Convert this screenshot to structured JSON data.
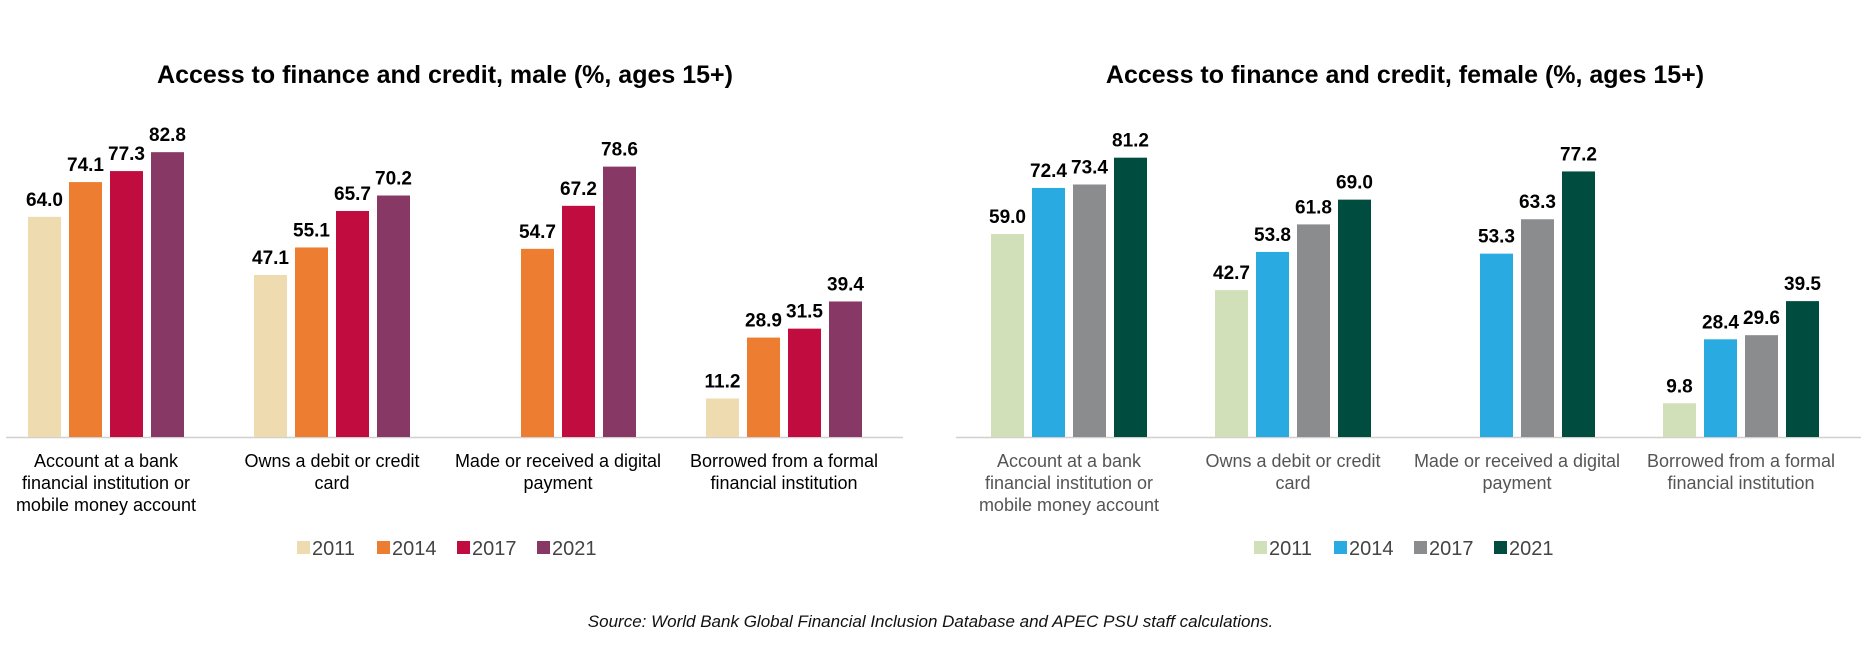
{
  "source_note": "Source: World Bank Global Financial Inclusion Database and APEC PSU staff calculations.",
  "chart_data": [
    {
      "type": "bar",
      "title": "Access to finance and credit, male (%, ages 15+)",
      "categories": [
        [
          "Account at a bank",
          "financial institution or",
          "mobile money account"
        ],
        [
          "Owns a debit or credit",
          "card"
        ],
        [
          "Made or received a digital",
          "payment"
        ],
        [
          "Borrowed from a formal",
          "financial institution"
        ]
      ],
      "series": [
        {
          "name": "2011",
          "color": "#EFDBB0",
          "values": [
            64.0,
            47.1,
            null,
            11.2
          ]
        },
        {
          "name": "2014",
          "color": "#ED7D31",
          "values": [
            74.1,
            55.1,
            54.7,
            28.9
          ]
        },
        {
          "name": "2017",
          "color": "#C00C3F",
          "values": [
            77.3,
            65.7,
            67.2,
            31.5
          ]
        },
        {
          "name": "2021",
          "color": "#873865",
          "values": [
            82.8,
            70.2,
            78.6,
            39.4
          ]
        }
      ],
      "ylim": [
        0,
        90
      ],
      "grid": false,
      "legend": "bottom",
      "xlabel": "",
      "ylabel": ""
    },
    {
      "type": "bar",
      "title": "Access to finance and credit, female (%, ages 15+)",
      "categories": [
        [
          "Account at a bank",
          "financial institution or",
          "mobile money account"
        ],
        [
          "Owns a debit or credit",
          "card"
        ],
        [
          "Made or received a digital",
          "payment"
        ],
        [
          "Borrowed from a formal",
          "financial institution"
        ]
      ],
      "series": [
        {
          "name": "2011",
          "color": "#D1E0B8",
          "values": [
            59.0,
            42.7,
            null,
            9.8
          ]
        },
        {
          "name": "2014",
          "color": "#29AAE1",
          "values": [
            72.4,
            53.8,
            53.3,
            28.4
          ]
        },
        {
          "name": "2017",
          "color": "#8A8C8E",
          "values": [
            73.4,
            61.8,
            63.3,
            29.6
          ]
        },
        {
          "name": "2021",
          "color": "#004D40",
          "values": [
            81.2,
            69.0,
            77.2,
            39.5
          ]
        }
      ],
      "ylim": [
        0,
        90
      ],
      "grid": false,
      "legend": "bottom",
      "xlabel": "",
      "ylabel": ""
    }
  ]
}
